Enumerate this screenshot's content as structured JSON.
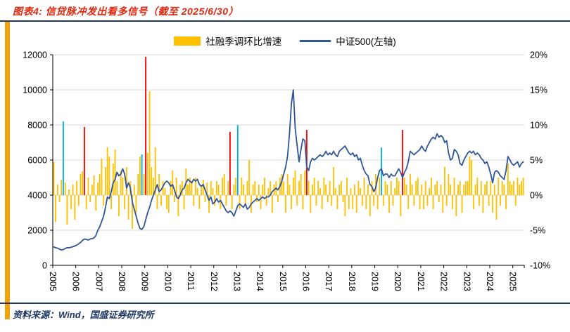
{
  "header": {
    "title": "图表4: 信贷脉冲发出看多信号（截至 2025/6/30）"
  },
  "footer": {
    "source": "资料来源：Wind，国盛证券研究所"
  },
  "legend": {
    "bar_label": "社融季调环比增速",
    "line_label": "中证500(左轴)"
  },
  "colors": {
    "bar": "#FFC000",
    "bar_signal_red": "#FF0000",
    "bar_signal_cyan": "#00B0F0",
    "line": "#2F5597",
    "title": "#DE2910",
    "rule": "#1F3864",
    "stripe": "#F0A30A",
    "grid": "#D9D9D9",
    "axis": "#000000",
    "source": "#1F3864"
  },
  "chart_data": {
    "type": "combo-bar-line",
    "title": "信贷脉冲发出看多信号（截至 2025/6/30）",
    "x_monthly": {
      "start": "2005-01",
      "end": "2025-06",
      "points": 246
    },
    "x_tick_labels": [
      "2005",
      "2006",
      "2007",
      "2008",
      "2009",
      "2010",
      "2011",
      "2012",
      "2013",
      "2014",
      "2015",
      "2016",
      "2017",
      "2018",
      "2019",
      "2020",
      "2021",
      "2022",
      "2023",
      "2024",
      "2025"
    ],
    "left_axis": {
      "min": 0,
      "max": 12000,
      "tick_labels": [
        "0",
        "2000",
        "4000",
        "6000",
        "8000",
        "10000",
        "12000"
      ],
      "applies_to": "中证500(左轴)"
    },
    "right_axis": {
      "min": -10,
      "max": 20,
      "tick_labels": [
        "-10%",
        "-5%",
        "0%",
        "5%",
        "10%",
        "15%",
        "20%"
      ],
      "applies_to": "社融季调环比增速"
    },
    "grid": "horizontal",
    "legend_position": "top-center",
    "series": [
      {
        "name": "社融季调环比增速",
        "type": "bar",
        "axis": "right",
        "unit": "%",
        "values": [
          4.7,
          -3.8,
          1.5,
          -1.0,
          2.2,
          10.5,
          1.8,
          -4.2,
          0.8,
          -2.0,
          1.5,
          -3.5,
          2.0,
          -1.5,
          3.0,
          3.4,
          9.7,
          -2.0,
          2.5,
          -1.0,
          1.5,
          2.8,
          -2.2,
          1.8,
          3.0,
          5.2,
          -1.5,
          4.0,
          6.8,
          5.5,
          -2.0,
          4.5,
          6.5,
          2.0,
          -3.0,
          3.5,
          2.5,
          -2.0,
          4.0,
          -3.5,
          2.0,
          -4.8,
          1.5,
          -2.5,
          3.0,
          5.5,
          5.8,
          3.0,
          19.7,
          6.0,
          14.8,
          4.0,
          2.5,
          6.8,
          -2.0,
          3.0,
          -1.5,
          2.0,
          1.0,
          -2.0,
          -2.5,
          2.0,
          3.5,
          -1.0,
          2.5,
          -3.0,
          1.5,
          2.0,
          -2.0,
          3.8,
          1.5,
          2.5,
          2.0,
          -1.5,
          2.5,
          1.0,
          -2.0,
          1.5,
          2.2,
          -1.0,
          1.8,
          -2.5,
          2.0,
          1.0,
          -1.5,
          2.0,
          1.5,
          -2.0,
          2.5,
          3.0,
          -1.5,
          2.0,
          9.0,
          -2.0,
          1.5,
          2.5,
          10.0,
          -2.0,
          2.5,
          1.5,
          -1.5,
          2.0,
          5.0,
          -2.5,
          1.5,
          2.0,
          -1.0,
          1.5,
          -2.0,
          1.5,
          2.5,
          -1.5,
          1.0,
          2.0,
          -2.5,
          1.5,
          2.0,
          -1.0,
          2.5,
          3.0,
          2.0,
          -2.5,
          3.0,
          1.5,
          -2.0,
          2.5,
          3.5,
          -1.5,
          2.0,
          3.0,
          -2.0,
          3.5,
          9.3,
          2.0,
          -2.5,
          1.5,
          2.5,
          -1.5,
          2.0,
          1.0,
          -2.0,
          2.5,
          1.5,
          -1.0,
          2.0,
          -1.5,
          4.0,
          1.0,
          -2.0,
          1.5,
          2.0,
          -1.0,
          -3.0,
          2.5,
          -2.0,
          1.0,
          -2.0,
          1.5,
          -2.5,
          2.0,
          1.0,
          -1.5,
          2.5,
          -2.0,
          1.5,
          -3.0,
          2.0,
          -1.5,
          3.0,
          -2.0,
          2.5,
          6.8,
          -1.5,
          2.0,
          1.5,
          -2.5,
          2.0,
          -1.5,
          1.0,
          2.5,
          2.0,
          -3.0,
          9.3,
          2.5,
          1.5,
          -2.0,
          3.0,
          1.5,
          -1.5,
          2.0,
          2.5,
          -2.0,
          1.5,
          -2.0,
          2.0,
          -1.5,
          1.0,
          2.5,
          -2.0,
          1.5,
          2.0,
          -1.0,
          1.5,
          -2.5,
          4.0,
          -1.5,
          3.0,
          1.5,
          -2.0,
          2.5,
          -3.0,
          1.5,
          2.0,
          -2.5,
          1.5,
          2.0,
          2.0,
          5.5,
          5.0,
          -2.0,
          1.5,
          2.5,
          -1.5,
          2.0,
          -2.5,
          1.5,
          2.0,
          -1.5,
          2.0,
          -2.5,
          1.5,
          -3.5,
          2.5,
          -1.5,
          2.0,
          1.5,
          -2.0,
          4.5,
          2.0,
          1.5,
          2.0,
          -1.5,
          2.5,
          1.5,
          2.0,
          2.5
        ]
      },
      {
        "name": "中证500(左轴)",
        "type": "line",
        "axis": "left",
        "values": [
          1050,
          1000,
          980,
          920,
          880,
          900,
          960,
          1010,
          1000,
          1030,
          1060,
          1100,
          1150,
          1230,
          1300,
          1420,
          1500,
          1480,
          1440,
          1500,
          1520,
          1560,
          1700,
          2000,
          2200,
          2500,
          2800,
          3300,
          3900,
          3800,
          4200,
          4700,
          4900,
          5300,
          5100,
          5200,
          5500,
          5200,
          4400,
          4700,
          4400,
          3600,
          3200,
          2800,
          2400,
          2100,
          2050,
          2200,
          2600,
          3000,
          3300,
          3700,
          4000,
          4300,
          4600,
          4200,
          4300,
          4500,
          4700,
          4800,
          4700,
          4500,
          4600,
          4300,
          3900,
          3800,
          4000,
          4300,
          4400,
          4700,
          4900,
          4800,
          4700,
          4900,
          4800,
          4900,
          4600,
          4500,
          4600,
          4300,
          4000,
          3700,
          3900,
          3500,
          3600,
          3800,
          3600,
          3700,
          3500,
          3300,
          3100,
          3000,
          3100,
          3000,
          2800,
          3100,
          3400,
          3500,
          3400,
          3300,
          3500,
          3200,
          3300,
          3500,
          3600,
          3700,
          3800,
          3700,
          3800,
          3900,
          3800,
          3900,
          3900,
          4000,
          4200,
          4300,
          4400,
          4300,
          4500,
          4800,
          5200,
          5600,
          6200,
          7500,
          9200,
          10000,
          7800,
          6800,
          5900,
          6600,
          7200,
          7100,
          5600,
          5400,
          5900,
          6100,
          6000,
          6100,
          6200,
          6300,
          6200,
          6300,
          6500,
          6300,
          6400,
          6300,
          6500,
          6300,
          6200,
          6500,
          6600,
          6700,
          6800,
          6600,
          6400,
          6300,
          6400,
          6200,
          6300,
          6000,
          6100,
          5700,
          5400,
          5200,
          5100,
          4600,
          4500,
          4200,
          4400,
          5000,
          5400,
          5500,
          5100,
          5200,
          5200,
          5000,
          5200,
          5100,
          5100,
          5300,
          5500,
          5300,
          5000,
          5300,
          5500,
          5900,
          6500,
          6400,
          6300,
          6400,
          6500,
          6600,
          6800,
          6600,
          6500,
          6800,
          7000,
          7200,
          7300,
          7200,
          7500,
          7300,
          7400,
          7300,
          7000,
          7100,
          6400,
          6000,
          6100,
          6600,
          6500,
          6300,
          5800,
          5700,
          6000,
          6200,
          6400,
          6500,
          6400,
          6500,
          6300,
          6400,
          6300,
          6100,
          6000,
          5800,
          5900,
          5600,
          5200,
          4700,
          5300,
          5400,
          5300,
          5100,
          5000,
          4900,
          5400,
          6200,
          6000,
          5800,
          5700,
          5800,
          5900,
          5600,
          5800,
          5900
        ]
      }
    ],
    "signal_bars": [
      {
        "index": 5,
        "date": "2005-06",
        "color": "#00B0F0"
      },
      {
        "index": 16,
        "date": "2006-05",
        "color": "#FF0000"
      },
      {
        "index": 46,
        "date": "2008-11",
        "color": "#00B0F0"
      },
      {
        "index": 48,
        "date": "2009-01",
        "color": "#FF0000"
      },
      {
        "index": 92,
        "date": "2012-09",
        "color": "#FF0000"
      },
      {
        "index": 96,
        "date": "2013-01",
        "color": "#00B0F0"
      },
      {
        "index": 132,
        "date": "2016-01",
        "color": "#FF0000"
      },
      {
        "index": 171,
        "date": "2019-04",
        "color": "#00B0F0"
      },
      {
        "index": 182,
        "date": "2020-03",
        "color": "#FF0000"
      }
    ]
  }
}
